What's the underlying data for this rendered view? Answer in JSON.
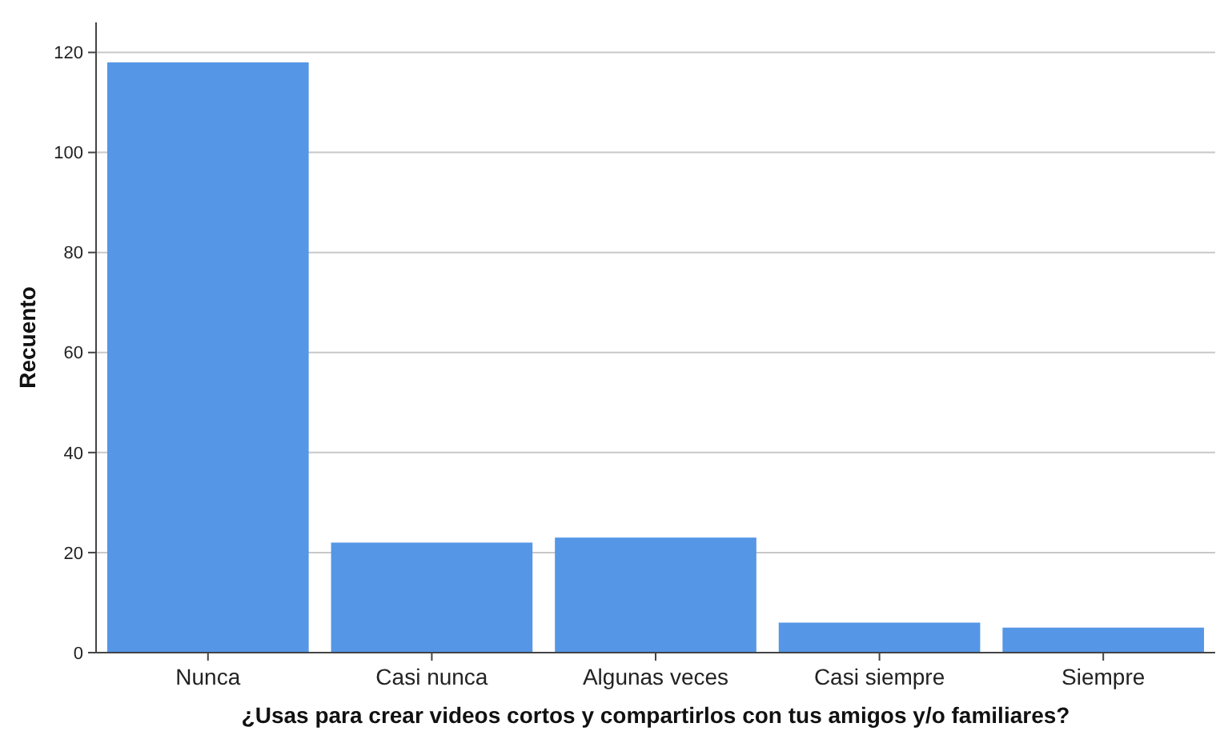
{
  "chart_data": {
    "type": "bar",
    "xlabel": "¿Usas para crear videos cortos y compartirlos con tus amigos y/o familiares?",
    "ylabel": "Recuento",
    "categories": [
      "Nunca",
      "Casi nunca",
      "Algunas veces",
      "Casi siempre",
      "Siempre"
    ],
    "values": [
      118,
      22,
      23,
      6,
      5
    ],
    "color": "#5596e6",
    "ylim": [
      0,
      126
    ],
    "yticks": [
      0,
      20,
      40,
      60,
      80,
      100,
      120
    ],
    "grid": "y"
  }
}
